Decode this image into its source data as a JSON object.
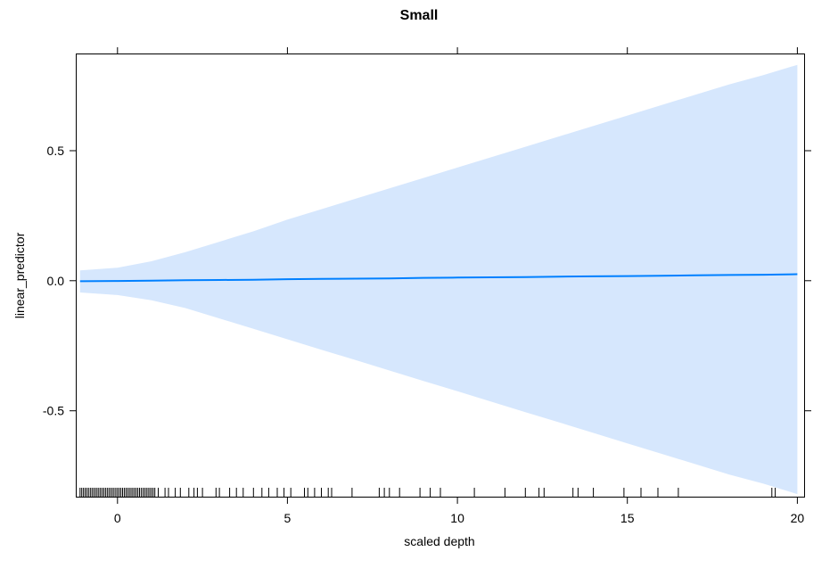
{
  "chart_data": {
    "type": "line",
    "title": "Small",
    "xlabel": "scaled depth",
    "ylabel": "linear_predictor",
    "xlim": [
      -1.2,
      20.2
    ],
    "ylim": [
      -0.83,
      0.87
    ],
    "x_ticks": [
      0,
      5,
      10,
      15,
      20
    ],
    "x_tick_labels": [
      "0",
      "5",
      "10",
      "15",
      "20"
    ],
    "y_ticks": [
      0.5,
      0.0,
      -0.5
    ],
    "y_tick_labels": [
      "0.5",
      "0.0",
      "-0.5"
    ],
    "grid": false,
    "legend": "none",
    "series": [
      {
        "x": [
          -1.1,
          0,
          1,
          2,
          3,
          4,
          5,
          6,
          7,
          8,
          9,
          10,
          11,
          12,
          13,
          14,
          15,
          16,
          17,
          18,
          19,
          20
        ],
        "fit": [
          -0.002,
          -0.001,
          0.0,
          0.002,
          0.003,
          0.004,
          0.006,
          0.007,
          0.008,
          0.009,
          0.011,
          0.012,
          0.013,
          0.014,
          0.016,
          0.017,
          0.018,
          0.019,
          0.021,
          0.022,
          0.023,
          0.025
        ],
        "upper": [
          0.04,
          0.05,
          0.075,
          0.11,
          0.15,
          0.19,
          0.235,
          0.275,
          0.315,
          0.355,
          0.395,
          0.435,
          0.475,
          0.515,
          0.555,
          0.595,
          0.635,
          0.675,
          0.715,
          0.755,
          0.79,
          0.83
        ],
        "lower": [
          -0.045,
          -0.055,
          -0.075,
          -0.105,
          -0.145,
          -0.185,
          -0.225,
          -0.265,
          -0.305,
          -0.345,
          -0.385,
          -0.425,
          -0.465,
          -0.505,
          -0.545,
          -0.585,
          -0.625,
          -0.665,
          -0.705,
          -0.745,
          -0.78,
          -0.82
        ]
      }
    ],
    "rug_x": [
      -1.1,
      -1.05,
      -1.0,
      -0.95,
      -0.9,
      -0.85,
      -0.8,
      -0.75,
      -0.7,
      -0.65,
      -0.6,
      -0.55,
      -0.5,
      -0.45,
      -0.4,
      -0.35,
      -0.3,
      -0.25,
      -0.2,
      -0.15,
      -0.1,
      -0.05,
      0.0,
      0.05,
      0.1,
      0.15,
      0.2,
      0.25,
      0.3,
      0.35,
      0.4,
      0.45,
      0.5,
      0.55,
      0.6,
      0.65,
      0.7,
      0.75,
      0.8,
      0.85,
      0.9,
      0.95,
      1.0,
      1.05,
      1.1,
      1.2,
      1.4,
      1.5,
      1.7,
      1.85,
      2.1,
      2.25,
      2.35,
      2.5,
      2.9,
      3.0,
      3.3,
      3.5,
      3.7,
      4.0,
      4.25,
      4.45,
      4.7,
      4.9,
      5.1,
      5.5,
      5.6,
      5.8,
      6.0,
      6.2,
      6.3,
      6.9,
      7.7,
      7.85,
      8.0,
      8.3,
      8.9,
      9.2,
      9.5,
      10.5,
      11.4,
      12.0,
      12.4,
      12.55,
      13.4,
      13.55,
      14.0,
      14.9,
      15.4,
      15.9,
      16.5,
      19.25,
      19.35
    ]
  }
}
